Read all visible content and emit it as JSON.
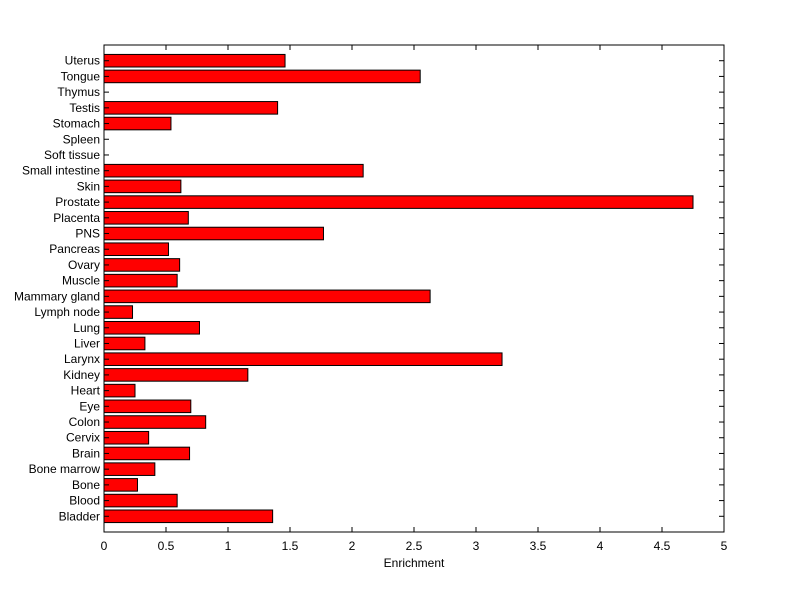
{
  "chart_data": {
    "type": "bar",
    "orientation": "horizontal",
    "title": "",
    "xlabel": "Enrichment",
    "ylabel": "",
    "xlim": [
      0,
      5
    ],
    "x_ticks": [
      0,
      0.5,
      1,
      1.5,
      2,
      2.5,
      3,
      3.5,
      4,
      4.5,
      5
    ],
    "x_tick_labels": [
      "0",
      "0.5",
      "1",
      "1.5",
      "2",
      "2.5",
      "3",
      "3.5",
      "4",
      "4.5",
      "5"
    ],
    "grid": false,
    "legend": "none",
    "bar_color": "#ff0000",
    "bar_edge_color": "#000000",
    "categories": [
      "Uterus",
      "Tongue",
      "Thymus",
      "Testis",
      "Stomach",
      "Spleen",
      "Soft tissue",
      "Small intestine",
      "Skin",
      "Prostate",
      "Placenta",
      "PNS",
      "Pancreas",
      "Ovary",
      "Muscle",
      "Mammary gland",
      "Lymph node",
      "Lung",
      "Liver",
      "Larynx",
      "Kidney",
      "Heart",
      "Eye",
      "Colon",
      "Cervix",
      "Brain",
      "Bone marrow",
      "Bone",
      "Blood",
      "Bladder"
    ],
    "values": [
      1.46,
      2.55,
      0,
      1.4,
      0.54,
      0,
      0,
      2.09,
      0.62,
      4.75,
      0.68,
      1.77,
      0.52,
      0.61,
      0.59,
      2.63,
      0.23,
      0.77,
      0.33,
      3.21,
      1.16,
      0.25,
      0.7,
      0.82,
      0.36,
      0.69,
      0.41,
      0.27,
      0.59,
      1.36
    ]
  }
}
